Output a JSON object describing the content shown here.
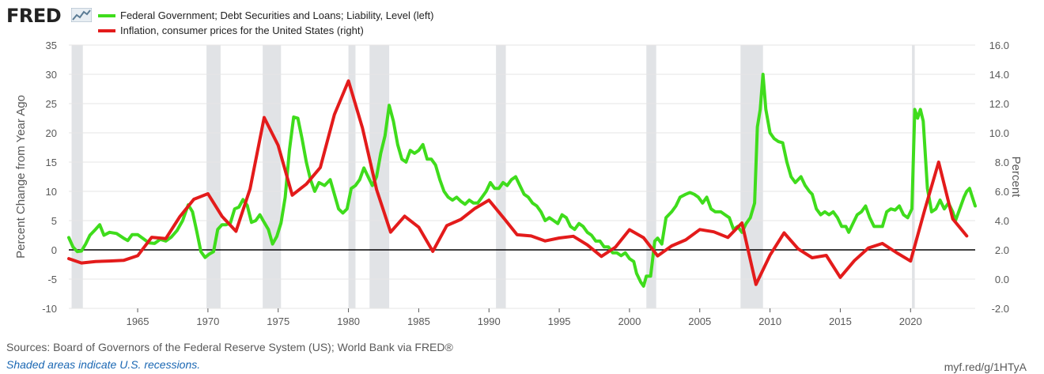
{
  "header": {
    "logo_text": "FRED",
    "logo_graph_icon": "line-graph-icon"
  },
  "legend": {
    "items": [
      {
        "label": "Federal Government; Debt Securities and Loans; Liability, Level (left)",
        "color": "#3fdc1c"
      },
      {
        "label": "Inflation, consumer prices for the United States (right)",
        "color": "#e31b1b"
      }
    ]
  },
  "footer": {
    "sources": "Sources: Board of Governors of the Federal Reserve System (US); World Bank via FRED®",
    "recession_note": "Shaded areas indicate U.S. recessions.",
    "short_url": "myf.red/g/1HTyA"
  },
  "chart_data": {
    "type": "line",
    "ylabel_left": "Percent Change from Year Ago",
    "ylabel_right": "Percent",
    "xlim": [
      1960.1,
      2024.6
    ],
    "ylim_left": [
      -10,
      35
    ],
    "ylim_right": [
      -2,
      16
    ],
    "x_ticks": [
      1965,
      1970,
      1975,
      1980,
      1985,
      1990,
      1995,
      2000,
      2005,
      2010,
      2015,
      2020
    ],
    "y_ticks_left": [
      -10,
      -5,
      0,
      5,
      10,
      15,
      20,
      25,
      30,
      35
    ],
    "y_ticks_left_labels": [
      "-10",
      "-5",
      "0",
      "5",
      "10",
      "15",
      "20",
      "25",
      "30",
      "35"
    ],
    "y_ticks_right": [
      -2,
      0,
      2,
      4,
      6,
      8,
      10,
      12,
      14,
      16
    ],
    "y_ticks_right_labels": [
      "-2.0",
      "0.0",
      "2.0",
      "4.0",
      "6.0",
      "8.0",
      "10.0",
      "12.0",
      "14.0",
      "16.0"
    ],
    "grid": "horizontal",
    "legend_position": "top-left",
    "recessions": [
      [
        1960.3,
        1961.1
      ],
      [
        1969.9,
        1970.9
      ],
      [
        1973.9,
        1975.2
      ],
      [
        1980.0,
        1980.5
      ],
      [
        1981.5,
        1982.9
      ],
      [
        1990.5,
        1991.2
      ],
      [
        2001.2,
        2001.9
      ],
      [
        2007.9,
        2009.5
      ],
      [
        2020.1,
        2020.3
      ]
    ],
    "recession_color": "#e1e3e6",
    "series": [
      {
        "name": "Federal Government; Debt Securities and Loans; Liability, Level (left)",
        "axis": "left",
        "color": "#3fdc1c",
        "points": [
          [
            1960.1,
            2.1
          ],
          [
            1960.4,
            0.5
          ],
          [
            1960.7,
            -0.3
          ],
          [
            1961.0,
            -0.2
          ],
          [
            1961.3,
            1.0
          ],
          [
            1961.6,
            2.5
          ],
          [
            1962.0,
            3.5
          ],
          [
            1962.3,
            4.3
          ],
          [
            1962.6,
            2.5
          ],
          [
            1963.0,
            3.0
          ],
          [
            1963.5,
            2.8
          ],
          [
            1964.0,
            2.0
          ],
          [
            1964.3,
            1.6
          ],
          [
            1964.6,
            2.6
          ],
          [
            1965.0,
            2.6
          ],
          [
            1965.4,
            1.9
          ],
          [
            1965.8,
            1.2
          ],
          [
            1966.2,
            1.1
          ],
          [
            1966.6,
            1.8
          ],
          [
            1967.0,
            1.5
          ],
          [
            1967.4,
            2.2
          ],
          [
            1967.8,
            3.3
          ],
          [
            1968.2,
            5.0
          ],
          [
            1968.6,
            7.7
          ],
          [
            1968.9,
            6.5
          ],
          [
            1969.2,
            3.2
          ],
          [
            1969.5,
            -0.3
          ],
          [
            1969.8,
            -1.3
          ],
          [
            1970.1,
            -0.7
          ],
          [
            1970.4,
            -0.3
          ],
          [
            1970.7,
            3.5
          ],
          [
            1971.0,
            4.3
          ],
          [
            1971.3,
            4.3
          ],
          [
            1971.6,
            4.6
          ],
          [
            1971.9,
            7.0
          ],
          [
            1972.2,
            7.3
          ],
          [
            1972.5,
            8.6
          ],
          [
            1972.8,
            7.6
          ],
          [
            1973.1,
            4.7
          ],
          [
            1973.4,
            5.0
          ],
          [
            1973.7,
            6.0
          ],
          [
            1974.0,
            4.7
          ],
          [
            1974.3,
            3.5
          ],
          [
            1974.6,
            1.0
          ],
          [
            1974.9,
            2.3
          ],
          [
            1975.2,
            4.6
          ],
          [
            1975.5,
            9.0
          ],
          [
            1975.8,
            17.0
          ],
          [
            1976.1,
            22.7
          ],
          [
            1976.4,
            22.5
          ],
          [
            1976.7,
            19.0
          ],
          [
            1977.0,
            15.0
          ],
          [
            1977.3,
            12.0
          ],
          [
            1977.6,
            10.0
          ],
          [
            1977.9,
            11.5
          ],
          [
            1978.3,
            11.0
          ],
          [
            1978.7,
            12.0
          ],
          [
            1979.0,
            9.5
          ],
          [
            1979.3,
            7.0
          ],
          [
            1979.6,
            6.3
          ],
          [
            1979.9,
            7.0
          ],
          [
            1980.2,
            10.5
          ],
          [
            1980.5,
            11.0
          ],
          [
            1980.8,
            12.0
          ],
          [
            1981.1,
            14.0
          ],
          [
            1981.4,
            12.5
          ],
          [
            1981.7,
            11.0
          ],
          [
            1982.0,
            12.5
          ],
          [
            1982.3,
            16.5
          ],
          [
            1982.6,
            19.5
          ],
          [
            1982.9,
            24.7
          ],
          [
            1983.2,
            22.0
          ],
          [
            1983.5,
            18.0
          ],
          [
            1983.8,
            15.5
          ],
          [
            1984.1,
            15.0
          ],
          [
            1984.4,
            17.0
          ],
          [
            1984.7,
            16.5
          ],
          [
            1985.0,
            17.0
          ],
          [
            1985.3,
            18.0
          ],
          [
            1985.6,
            15.5
          ],
          [
            1985.9,
            15.5
          ],
          [
            1986.2,
            14.5
          ],
          [
            1986.5,
            12.0
          ],
          [
            1986.8,
            10.0
          ],
          [
            1987.1,
            9.0
          ],
          [
            1987.4,
            8.5
          ],
          [
            1987.7,
            9.0
          ],
          [
            1988.0,
            8.3
          ],
          [
            1988.3,
            7.8
          ],
          [
            1988.6,
            8.5
          ],
          [
            1988.9,
            8.0
          ],
          [
            1989.2,
            8.0
          ],
          [
            1989.5,
            9.0
          ],
          [
            1989.8,
            10.0
          ],
          [
            1990.1,
            11.5
          ],
          [
            1990.4,
            10.5
          ],
          [
            1990.7,
            10.5
          ],
          [
            1991.0,
            11.5
          ],
          [
            1991.3,
            11.0
          ],
          [
            1991.6,
            12.0
          ],
          [
            1991.9,
            12.5
          ],
          [
            1992.2,
            11.0
          ],
          [
            1992.5,
            9.5
          ],
          [
            1992.8,
            9.0
          ],
          [
            1993.1,
            8.0
          ],
          [
            1993.4,
            7.5
          ],
          [
            1993.7,
            6.5
          ],
          [
            1994.0,
            5.0
          ],
          [
            1994.3,
            5.5
          ],
          [
            1994.6,
            5.0
          ],
          [
            1994.9,
            4.5
          ],
          [
            1995.2,
            6.0
          ],
          [
            1995.5,
            5.5
          ],
          [
            1995.8,
            4.0
          ],
          [
            1996.1,
            3.5
          ],
          [
            1996.4,
            4.5
          ],
          [
            1996.7,
            4.0
          ],
          [
            1997.0,
            3.0
          ],
          [
            1997.3,
            2.5
          ],
          [
            1997.6,
            1.5
          ],
          [
            1997.9,
            1.5
          ],
          [
            1998.2,
            0.5
          ],
          [
            1998.5,
            0.5
          ],
          [
            1998.8,
            -0.5
          ],
          [
            1999.1,
            -0.5
          ],
          [
            1999.4,
            -1.0
          ],
          [
            1999.7,
            -0.5
          ],
          [
            2000.0,
            -1.5
          ],
          [
            2000.3,
            -2.0
          ],
          [
            2000.5,
            -4.0
          ],
          [
            2000.8,
            -5.5
          ],
          [
            2001.0,
            -6.2
          ],
          [
            2001.2,
            -4.5
          ],
          [
            2001.5,
            -4.5
          ],
          [
            2001.8,
            1.5
          ],
          [
            2002.0,
            2.0
          ],
          [
            2002.3,
            1.0
          ],
          [
            2002.6,
            5.5
          ],
          [
            2003.0,
            6.5
          ],
          [
            2003.3,
            7.5
          ],
          [
            2003.6,
            9.0
          ],
          [
            2004.0,
            9.5
          ],
          [
            2004.3,
            9.8
          ],
          [
            2004.6,
            9.5
          ],
          [
            2004.9,
            9.0
          ],
          [
            2005.2,
            8.0
          ],
          [
            2005.5,
            9.0
          ],
          [
            2005.8,
            7.0
          ],
          [
            2006.1,
            6.5
          ],
          [
            2006.5,
            6.5
          ],
          [
            2006.8,
            6.0
          ],
          [
            2007.1,
            5.5
          ],
          [
            2007.4,
            3.5
          ],
          [
            2007.7,
            4.0
          ],
          [
            2008.0,
            3.0
          ],
          [
            2008.3,
            4.5
          ],
          [
            2008.6,
            5.5
          ],
          [
            2008.9,
            8.0
          ],
          [
            2009.1,
            21.0
          ],
          [
            2009.3,
            24.0
          ],
          [
            2009.5,
            30.0
          ],
          [
            2009.7,
            24.0
          ],
          [
            2010.0,
            20.0
          ],
          [
            2010.3,
            19.0
          ],
          [
            2010.6,
            18.5
          ],
          [
            2010.9,
            18.3
          ],
          [
            2011.2,
            15.0
          ],
          [
            2011.5,
            12.5
          ],
          [
            2011.8,
            11.5
          ],
          [
            2012.2,
            12.5
          ],
          [
            2012.5,
            11.0
          ],
          [
            2012.8,
            10.0
          ],
          [
            2013.0,
            9.5
          ],
          [
            2013.3,
            7.0
          ],
          [
            2013.6,
            6.0
          ],
          [
            2013.9,
            6.5
          ],
          [
            2014.2,
            6.0
          ],
          [
            2014.5,
            6.5
          ],
          [
            2014.8,
            5.5
          ],
          [
            2015.1,
            4.0
          ],
          [
            2015.4,
            4.0
          ],
          [
            2015.6,
            3.0
          ],
          [
            2015.9,
            4.5
          ],
          [
            2016.2,
            6.0
          ],
          [
            2016.5,
            6.5
          ],
          [
            2016.8,
            7.5
          ],
          [
            2017.1,
            5.5
          ],
          [
            2017.4,
            4.0
          ],
          [
            2017.7,
            4.0
          ],
          [
            2018.0,
            4.0
          ],
          [
            2018.3,
            6.5
          ],
          [
            2018.6,
            7.0
          ],
          [
            2018.9,
            6.8
          ],
          [
            2019.2,
            7.5
          ],
          [
            2019.5,
            6.0
          ],
          [
            2019.8,
            5.5
          ],
          [
            2020.1,
            7.0
          ],
          [
            2020.3,
            24.0
          ],
          [
            2020.5,
            22.5
          ],
          [
            2020.7,
            24.0
          ],
          [
            2020.9,
            22.0
          ],
          [
            2021.2,
            10.5
          ],
          [
            2021.5,
            6.5
          ],
          [
            2021.8,
            7.0
          ],
          [
            2022.1,
            8.5
          ],
          [
            2022.4,
            7.0
          ],
          [
            2022.7,
            8.0
          ],
          [
            2023.0,
            6.5
          ],
          [
            2023.2,
            5.0
          ],
          [
            2023.5,
            7.0
          ],
          [
            2023.8,
            9.0
          ],
          [
            2024.0,
            10.0
          ],
          [
            2024.2,
            10.5
          ],
          [
            2024.4,
            9.0
          ],
          [
            2024.6,
            7.5
          ]
        ]
      },
      {
        "name": "Inflation, consumer prices for the United States (right)",
        "axis": "right",
        "color": "#e31b1b",
        "points": [
          [
            1960.1,
            1.4
          ],
          [
            1961,
            1.1
          ],
          [
            1962,
            1.2
          ],
          [
            1963,
            1.24
          ],
          [
            1964,
            1.28
          ],
          [
            1965,
            1.6
          ],
          [
            1966,
            2.86
          ],
          [
            1967,
            2.77
          ],
          [
            1968,
            4.27
          ],
          [
            1969,
            5.46
          ],
          [
            1970,
            5.84
          ],
          [
            1971,
            4.29
          ],
          [
            1972,
            3.27
          ],
          [
            1973,
            6.18
          ],
          [
            1974,
            11.05
          ],
          [
            1975,
            9.14
          ],
          [
            1976,
            5.74
          ],
          [
            1977,
            6.5
          ],
          [
            1978,
            7.63
          ],
          [
            1979,
            11.25
          ],
          [
            1980,
            13.55
          ],
          [
            1981,
            10.33
          ],
          [
            1982,
            6.13
          ],
          [
            1983,
            3.21
          ],
          [
            1984,
            4.3
          ],
          [
            1985,
            3.55
          ],
          [
            1986,
            1.9
          ],
          [
            1987,
            3.66
          ],
          [
            1988,
            4.08
          ],
          [
            1989,
            4.83
          ],
          [
            1990,
            5.4
          ],
          [
            1991,
            4.23
          ],
          [
            1992,
            3.03
          ],
          [
            1993,
            2.95
          ],
          [
            1994,
            2.61
          ],
          [
            1995,
            2.81
          ],
          [
            1996,
            2.93
          ],
          [
            1997,
            2.34
          ],
          [
            1998,
            1.55
          ],
          [
            1999,
            2.19
          ],
          [
            2000,
            3.38
          ],
          [
            2001,
            2.83
          ],
          [
            2002,
            1.59
          ],
          [
            2003,
            2.27
          ],
          [
            2004,
            2.68
          ],
          [
            2005,
            3.39
          ],
          [
            2006,
            3.23
          ],
          [
            2007,
            2.85
          ],
          [
            2008,
            3.84
          ],
          [
            2009,
            -0.36
          ],
          [
            2010,
            1.64
          ],
          [
            2011,
            3.16
          ],
          [
            2012,
            2.07
          ],
          [
            2013,
            1.46
          ],
          [
            2014,
            1.62
          ],
          [
            2015,
            0.12
          ],
          [
            2016,
            1.26
          ],
          [
            2017,
            2.13
          ],
          [
            2018,
            2.44
          ],
          [
            2019,
            1.81
          ],
          [
            2020,
            1.23
          ],
          [
            2021,
            4.7
          ],
          [
            2022,
            8.0
          ],
          [
            2023,
            4.12
          ],
          [
            2024,
            2.95
          ]
        ]
      }
    ]
  }
}
